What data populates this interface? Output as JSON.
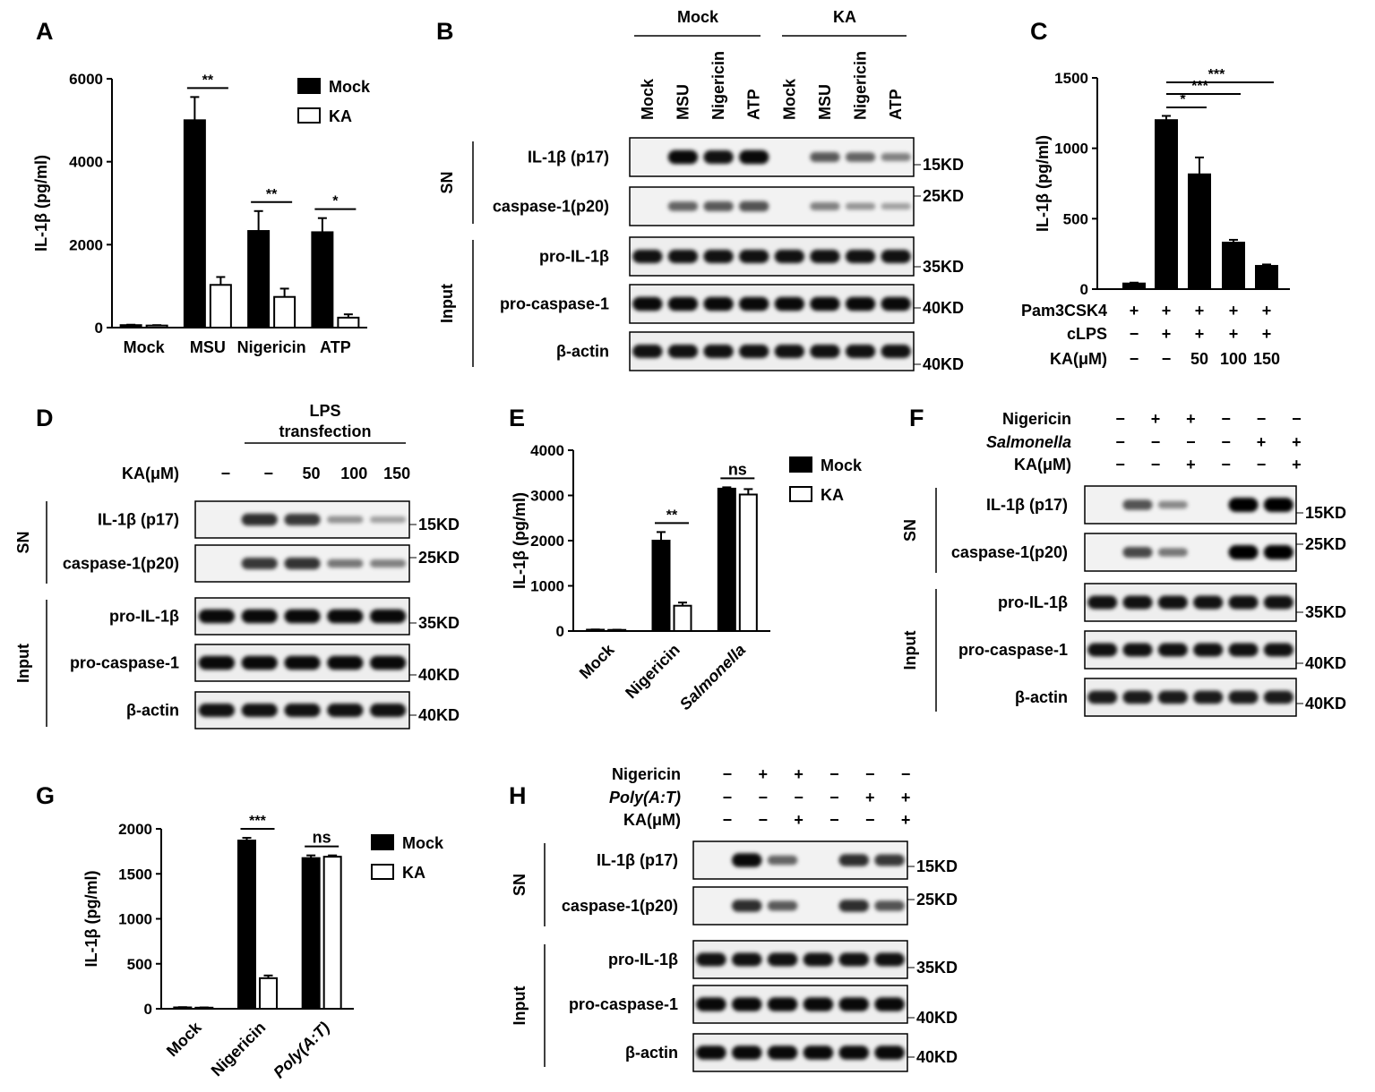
{
  "panels": {
    "A": "A",
    "B": "B",
    "C": "C",
    "D": "D",
    "E": "E",
    "F": "F",
    "G": "G",
    "H": "H"
  },
  "chart_data": [
    {
      "id": "A",
      "type": "bar",
      "ylabel": "IL-1β (pg/ml)",
      "ylim": [
        0,
        6000
      ],
      "yticks": [
        "0",
        "2000",
        "4000",
        "6000"
      ],
      "categories": [
        "Mock",
        "MSU",
        "Nigericin",
        "ATP"
      ],
      "series": [
        {
          "name": "Mock",
          "color": "#000000",
          "values": [
            60,
            5000,
            2330,
            2300
          ],
          "errors": [
            10,
            560,
            480,
            340
          ]
        },
        {
          "name": "KA",
          "color": "#ffffff",
          "values": [
            50,
            1030,
            740,
            240
          ],
          "errors": [
            10,
            190,
            200,
            80
          ]
        }
      ],
      "legend": "top-right",
      "significance": [
        {
          "group": 1,
          "label": "**"
        },
        {
          "group": 2,
          "label": "**"
        },
        {
          "group": 3,
          "label": "*"
        }
      ]
    },
    {
      "id": "C",
      "type": "bar",
      "ylabel": "IL-1β (pg/ml)",
      "ylim": [
        0,
        1500
      ],
      "yticks": [
        "0",
        "500",
        "1000",
        "1500"
      ],
      "values": [
        40,
        1200,
        815,
        330,
        165
      ],
      "errors": [
        6,
        30,
        120,
        20,
        10
      ],
      "rows": [
        {
          "label": "Pam3CSK4",
          "cells": [
            "+",
            "+",
            "+",
            "+",
            "+"
          ]
        },
        {
          "label": "cLPS",
          "cells": [
            "−",
            "+",
            "+",
            "+",
            "+"
          ]
        },
        {
          "label": "KA(μM)",
          "cells": [
            "−",
            "−",
            "50",
            "100",
            "150"
          ]
        }
      ],
      "significance": [
        {
          "from": 1,
          "to": 2,
          "label": "*"
        },
        {
          "from": 1,
          "to": 3,
          "label": "***"
        },
        {
          "from": 1,
          "to": 4,
          "label": "***"
        }
      ]
    },
    {
      "id": "E",
      "type": "bar",
      "ylabel": "IL-1β (pg/ml)",
      "ylim": [
        0,
        4000
      ],
      "yticks": [
        "0",
        "1000",
        "2000",
        "3000",
        "4000"
      ],
      "categories": [
        "Mock",
        "Nigericin",
        "Salmonella"
      ],
      "italic_categories": [
        false,
        false,
        true
      ],
      "series": [
        {
          "name": "Mock",
          "color": "#000000",
          "values": [
            30,
            2000,
            3150
          ],
          "errors": [
            5,
            190,
            30
          ]
        },
        {
          "name": "KA",
          "color": "#ffffff",
          "values": [
            25,
            560,
            3020
          ],
          "errors": [
            5,
            70,
            120
          ]
        }
      ],
      "legend": "top-right",
      "significance": [
        {
          "group": 1,
          "label": "**"
        },
        {
          "group": 2,
          "label": "ns"
        }
      ]
    },
    {
      "id": "G",
      "type": "bar",
      "ylabel": "IL-1β (pg/ml)",
      "ylim": [
        0,
        2000
      ],
      "yticks": [
        "0",
        "500",
        "1000",
        "1500",
        "2000"
      ],
      "categories": [
        "Mock",
        "Nigericin",
        "Poly(A:T)"
      ],
      "italic_categories": [
        false,
        false,
        true
      ],
      "series": [
        {
          "name": "Mock",
          "color": "#000000",
          "values": [
            15,
            1870,
            1675
          ],
          "errors": [
            3,
            30,
            30
          ]
        },
        {
          "name": "KA",
          "color": "#ffffff",
          "values": [
            12,
            340,
            1690
          ],
          "errors": [
            3,
            30,
            15
          ]
        }
      ],
      "legend": "top-right",
      "significance": [
        {
          "group": 1,
          "label": "***"
        },
        {
          "group": 2,
          "label": "ns"
        }
      ]
    }
  ],
  "blots": [
    {
      "id": "B",
      "group_headers": [
        "Mock",
        "KA"
      ],
      "lane_labels": [
        "Mock",
        "MSU",
        "Nigericin",
        "ATP",
        "Mock",
        "MSU",
        "Nigericin",
        "ATP"
      ],
      "section_labels": [
        "SN",
        "Input"
      ],
      "rows": [
        {
          "label": "IL-1β (p17)",
          "kd": "15KD",
          "intensity": [
            0,
            0.95,
            0.9,
            0.95,
            0,
            0.5,
            0.45,
            0.3
          ]
        },
        {
          "label": "caspase-1(p20)",
          "kd": "25KD",
          "intensity": [
            0,
            0.45,
            0.5,
            0.55,
            0,
            0.3,
            0.18,
            0.12
          ]
        },
        {
          "label": "pro-IL-1β",
          "kd": "35KD",
          "intensity": [
            0.9,
            0.9,
            0.9,
            0.9,
            0.9,
            0.9,
            0.9,
            0.9
          ]
        },
        {
          "label": "pro-caspase-1",
          "kd": "40KD",
          "intensity": [
            0.95,
            0.95,
            0.95,
            0.95,
            0.95,
            0.95,
            0.95,
            0.95
          ]
        },
        {
          "label": "β-actin",
          "kd": "40KD",
          "intensity": [
            0.9,
            0.9,
            0.9,
            0.9,
            0.9,
            0.9,
            0.9,
            0.9
          ]
        }
      ]
    },
    {
      "id": "D",
      "header": "LPS transfection",
      "header_line1": "LPS",
      "header_line2": "transfection",
      "ka_label": "KA(μM)",
      "ka_values": [
        "−",
        "−",
        "50",
        "100",
        "150"
      ],
      "section_labels": [
        "SN",
        "Input"
      ],
      "rows": [
        {
          "label": "IL-1β (p17)",
          "kd": "15KD",
          "intensity": [
            0,
            0.75,
            0.7,
            0.2,
            0.12
          ]
        },
        {
          "label": "caspase-1(p20)",
          "kd": "25KD",
          "intensity": [
            0,
            0.7,
            0.72,
            0.35,
            0.3
          ]
        },
        {
          "label": "pro-IL-1β",
          "kd": "35KD",
          "intensity": [
            0.95,
            0.95,
            0.95,
            0.95,
            0.95
          ]
        },
        {
          "label": "pro-caspase-1",
          "kd": "40KD",
          "intensity": [
            0.95,
            0.95,
            0.95,
            0.95,
            0.95
          ]
        },
        {
          "label": "β-actin",
          "kd": "40KD",
          "intensity": [
            0.9,
            0.9,
            0.9,
            0.9,
            0.9
          ]
        }
      ]
    },
    {
      "id": "F",
      "conditions": [
        {
          "label": "Nigericin",
          "italic": false,
          "cells": [
            "−",
            "+",
            "+",
            "−",
            "−",
            "−"
          ]
        },
        {
          "label": "Salmonella",
          "italic": true,
          "cells": [
            "−",
            "−",
            "−",
            "−",
            "+",
            "+"
          ]
        },
        {
          "label": "KA(μM)",
          "italic": false,
          "cells": [
            "−",
            "−",
            "+",
            "−",
            "−",
            "+"
          ]
        }
      ],
      "section_labels": [
        "SN",
        "Input"
      ],
      "rows": [
        {
          "label": "IL-1β (p17)",
          "kd": "15KD",
          "intensity": [
            0,
            0.55,
            0.25,
            0,
            1,
            1
          ]
        },
        {
          "label": "caspase-1(p20)",
          "kd": "25KD",
          "intensity": [
            0,
            0.6,
            0.35,
            0,
            1,
            1
          ]
        },
        {
          "label": "pro-IL-1β",
          "kd": "35KD",
          "intensity": [
            0.9,
            0.9,
            0.9,
            0.9,
            0.9,
            0.9
          ]
        },
        {
          "label": "pro-caspase-1",
          "kd": "40KD",
          "intensity": [
            0.9,
            0.9,
            0.9,
            0.9,
            0.9,
            0.9
          ]
        },
        {
          "label": "β-actin",
          "kd": "40KD",
          "intensity": [
            0.85,
            0.85,
            0.85,
            0.85,
            0.85,
            0.85
          ]
        }
      ]
    },
    {
      "id": "H",
      "conditions": [
        {
          "label": "Nigericin",
          "italic": false,
          "cells": [
            "−",
            "+",
            "+",
            "−",
            "−",
            "−"
          ]
        },
        {
          "label": "Poly(A:T)",
          "italic": true,
          "cells": [
            "−",
            "−",
            "−",
            "−",
            "+",
            "+"
          ]
        },
        {
          "label": "KA(μM)",
          "italic": false,
          "cells": [
            "−",
            "−",
            "+",
            "−",
            "−",
            "+"
          ]
        }
      ],
      "section_labels": [
        "SN",
        "Input"
      ],
      "rows": [
        {
          "label": "IL-1β (p17)",
          "kd": "15KD",
          "intensity": [
            0,
            0.95,
            0.45,
            0,
            0.75,
            0.7
          ]
        },
        {
          "label": "caspase-1(p20)",
          "kd": "25KD",
          "intensity": [
            0,
            0.75,
            0.5,
            0,
            0.75,
            0.55
          ]
        },
        {
          "label": "pro-IL-1β",
          "kd": "35KD",
          "intensity": [
            0.9,
            0.9,
            0.9,
            0.9,
            0.9,
            0.9
          ]
        },
        {
          "label": "pro-caspase-1",
          "kd": "40KD",
          "intensity": [
            0.95,
            0.95,
            0.95,
            0.95,
            0.95,
            0.95
          ]
        },
        {
          "label": "β-actin",
          "kd": "40KD",
          "intensity": [
            0.95,
            0.95,
            0.95,
            0.95,
            0.95,
            0.95
          ]
        }
      ]
    }
  ]
}
